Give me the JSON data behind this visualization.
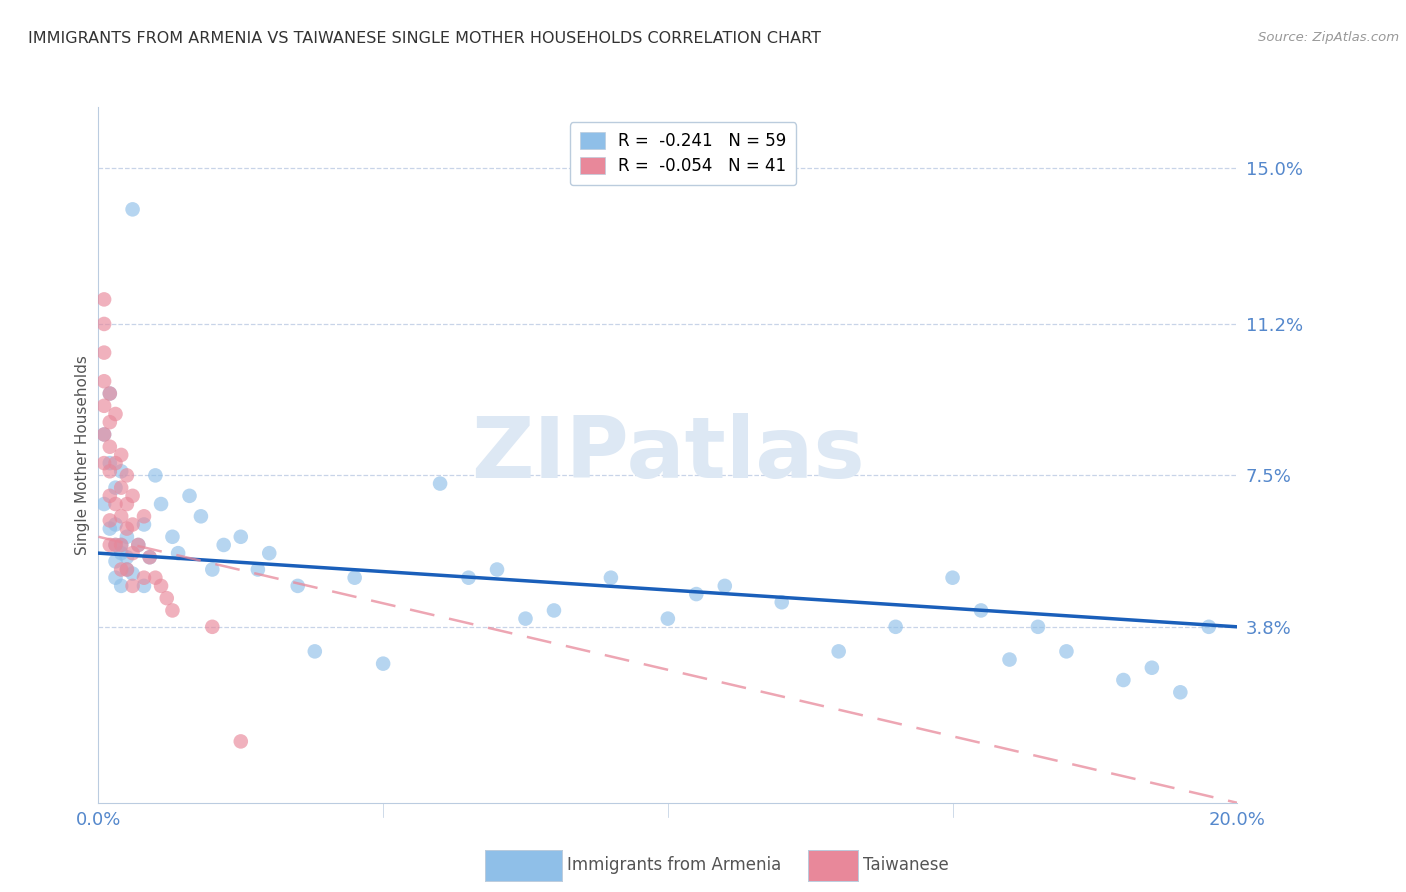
{
  "title": "IMMIGRANTS FROM ARMENIA VS TAIWANESE SINGLE MOTHER HOUSEHOLDS CORRELATION CHART",
  "source": "Source: ZipAtlas.com",
  "ylabel": "Single Mother Households",
  "xlim": [
    0.0,
    0.2
  ],
  "ylim": [
    -0.005,
    0.165
  ],
  "ytick_positions": [
    0.038,
    0.075,
    0.112,
    0.15
  ],
  "ytick_labels": [
    "3.8%",
    "7.5%",
    "11.2%",
    "15.0%"
  ],
  "xtick_positions": [
    0.0,
    0.05,
    0.1,
    0.15,
    0.2
  ],
  "xtick_labels": [
    "0.0%",
    "",
    "",
    "",
    "20.0%"
  ],
  "armenia_color": "#8fbfe8",
  "taiwan_color": "#e8889a",
  "armenia_line_color": "#1a5fba",
  "taiwan_line_color": "#e8889a",
  "background_color": "#ffffff",
  "grid_color": "#c8d4e8",
  "title_color": "#333333",
  "axis_label_color": "#555555",
  "tick_label_color": "#5588cc",
  "watermark_color": "#dde8f4",
  "legend_r1": "R =  -0.241   N = 59",
  "legend_r2": "R =  -0.054   N = 41",
  "armenia_scatter_x": [
    0.006,
    0.002,
    0.001,
    0.002,
    0.003,
    0.001,
    0.002,
    0.003,
    0.004,
    0.003,
    0.004,
    0.003,
    0.005,
    0.003,
    0.004,
    0.005,
    0.004,
    0.005,
    0.006,
    0.007,
    0.008,
    0.008,
    0.009,
    0.01,
    0.011,
    0.013,
    0.014,
    0.016,
    0.018,
    0.02,
    0.022,
    0.025,
    0.028,
    0.03,
    0.035,
    0.038,
    0.045,
    0.05,
    0.06,
    0.065,
    0.07,
    0.075,
    0.08,
    0.09,
    0.1,
    0.105,
    0.11,
    0.12,
    0.13,
    0.14,
    0.15,
    0.155,
    0.16,
    0.165,
    0.17,
    0.18,
    0.185,
    0.19,
    0.195
  ],
  "armenia_scatter_y": [
    0.14,
    0.095,
    0.085,
    0.078,
    0.072,
    0.068,
    0.062,
    0.058,
    0.076,
    0.063,
    0.058,
    0.054,
    0.06,
    0.05,
    0.056,
    0.052,
    0.048,
    0.055,
    0.051,
    0.058,
    0.048,
    0.063,
    0.055,
    0.075,
    0.068,
    0.06,
    0.056,
    0.07,
    0.065,
    0.052,
    0.058,
    0.06,
    0.052,
    0.056,
    0.048,
    0.032,
    0.05,
    0.029,
    0.073,
    0.05,
    0.052,
    0.04,
    0.042,
    0.05,
    0.04,
    0.046,
    0.048,
    0.044,
    0.032,
    0.038,
    0.05,
    0.042,
    0.03,
    0.038,
    0.032,
    0.025,
    0.028,
    0.022,
    0.038
  ],
  "taiwan_scatter_x": [
    0.001,
    0.001,
    0.001,
    0.001,
    0.001,
    0.001,
    0.001,
    0.002,
    0.002,
    0.002,
    0.002,
    0.002,
    0.002,
    0.002,
    0.003,
    0.003,
    0.003,
    0.003,
    0.004,
    0.004,
    0.004,
    0.004,
    0.004,
    0.005,
    0.005,
    0.005,
    0.005,
    0.006,
    0.006,
    0.006,
    0.006,
    0.007,
    0.008,
    0.008,
    0.009,
    0.01,
    0.011,
    0.012,
    0.013,
    0.02,
    0.025
  ],
  "taiwan_scatter_y": [
    0.118,
    0.112,
    0.105,
    0.098,
    0.092,
    0.085,
    0.078,
    0.095,
    0.088,
    0.082,
    0.076,
    0.07,
    0.064,
    0.058,
    0.09,
    0.078,
    0.068,
    0.058,
    0.08,
    0.072,
    0.065,
    0.058,
    0.052,
    0.075,
    0.068,
    0.062,
    0.052,
    0.07,
    0.063,
    0.056,
    0.048,
    0.058,
    0.065,
    0.05,
    0.055,
    0.05,
    0.048,
    0.045,
    0.042,
    0.038,
    0.01
  ],
  "armenia_line_x0": 0.0,
  "armenia_line_x1": 0.2,
  "armenia_line_y0": 0.056,
  "armenia_line_y1": 0.038,
  "taiwan_line_x0": 0.0,
  "taiwan_line_x1": 0.2,
  "taiwan_line_y0": 0.06,
  "taiwan_line_y1": -0.005
}
